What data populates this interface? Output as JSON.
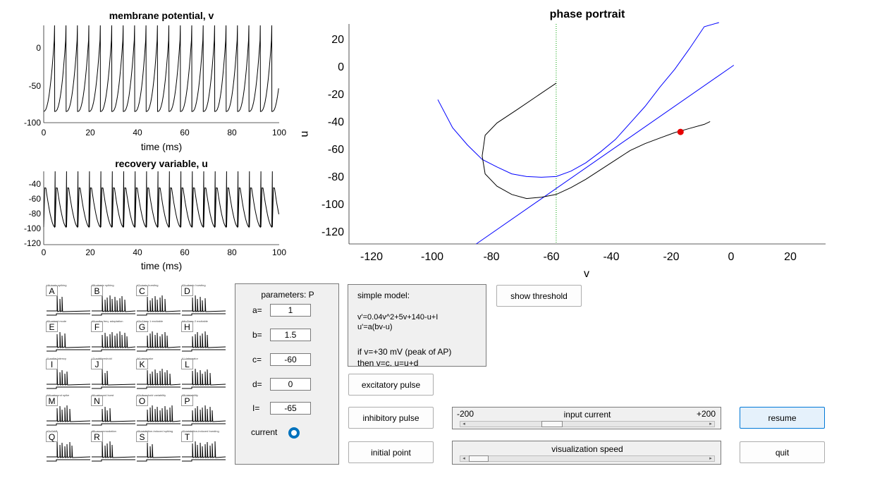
{
  "plots": {
    "membrane": {
      "title": "membrane potential, v",
      "xlabel": "time (ms)",
      "yticks": [
        "0",
        "-50",
        "-100"
      ],
      "xticks": [
        "0",
        "20",
        "40",
        "60",
        "80",
        "100"
      ]
    },
    "recovery": {
      "title": "recovery variable, u",
      "xlabel": "time (ms)",
      "yticks": [
        "-40",
        "-60",
        "-80",
        "-100",
        "-120"
      ],
      "xticks": [
        "0",
        "20",
        "40",
        "60",
        "80",
        "100"
      ]
    },
    "phase": {
      "title": "phase portrait",
      "xlabel": "v",
      "ylabel": "u",
      "yticks": [
        "20",
        "0",
        "-20",
        "-40",
        "-60",
        "-80",
        "-100",
        "-120"
      ],
      "xticks": [
        "-120",
        "-100",
        "-80",
        "-60",
        "-40",
        "-20",
        "0",
        "20"
      ]
    }
  },
  "chart_data": [
    {
      "type": "line",
      "title": "membrane potential, v",
      "xlabel": "time (ms)",
      "ylabel": "",
      "xlim": [
        0,
        100
      ],
      "ylim": [
        -100,
        30
      ],
      "spike_count": 21,
      "v_reset": -85,
      "v_peak": 30
    },
    {
      "type": "line",
      "title": "recovery variable, u",
      "xlabel": "time (ms)",
      "ylabel": "",
      "xlim": [
        0,
        100
      ],
      "ylim": [
        -122,
        -30
      ],
      "u_min": -100,
      "u_max": -30
    },
    {
      "type": "line",
      "title": "phase portrait",
      "xlabel": "v",
      "ylabel": "u",
      "xlim": [
        -130,
        31
      ],
      "ylim": [
        -130,
        30
      ],
      "series": [
        {
          "name": "",
          "color": "#0000ff",
          "x": [
            -100,
            -95,
            -90,
            -85,
            -80,
            -75,
            -70,
            -65,
            -60,
            -55,
            -50,
            -45,
            -40,
            -35,
            -30,
            -25,
            -20,
            -15,
            -10,
            -5
          ],
          "y": [
            -25,
            -45.5,
            -58,
            -68.5,
            -74,
            -79,
            -81,
            -81.5,
            -81,
            -77,
            -71,
            -63,
            -54,
            -42,
            -30,
            -16,
            -3,
            12,
            28,
            31
          ]
        },
        {
          "name": "",
          "color": "#0000ff",
          "x": [
            -87,
            0
          ],
          "y": [
            -130,
            0
          ]
        },
        {
          "name": "",
          "color": "#000000",
          "x": [
            -60,
            -73,
            -80,
            -84,
            -85,
            -84,
            -80,
            -75,
            -70,
            -65,
            -60,
            -55,
            -50,
            -45,
            -40,
            -35,
            -30,
            -25,
            -20,
            -15,
            -10,
            -8
          ],
          "y": [
            -13,
            -32,
            -42,
            -51,
            -66,
            -79,
            -88,
            -94,
            -97,
            -96,
            -94,
            -89,
            -83,
            -76,
            -69,
            -62,
            -57,
            -53,
            -49,
            -46,
            -43,
            -41
          ]
        }
      ],
      "threshold_line": {
        "x": -60,
        "color": "#00a000"
      },
      "current_point": {
        "x": -18,
        "y": -48.5,
        "color": "#e60000"
      }
    }
  ],
  "thumbnails": [
    {
      "letter": "A",
      "caption": "(A) tonic spiking"
    },
    {
      "letter": "B",
      "caption": "(B) phasic spiking"
    },
    {
      "letter": "C",
      "caption": "(C) tonic bursting"
    },
    {
      "letter": "D",
      "caption": "(D) phasic bursting"
    },
    {
      "letter": "E",
      "caption": "(E) mixed mode"
    },
    {
      "letter": "F",
      "caption": "(F) spike freq. adaptation"
    },
    {
      "letter": "G",
      "caption": "(G) Class 1 excitable"
    },
    {
      "letter": "H",
      "caption": "(H) Class 2 excitable"
    },
    {
      "letter": "I",
      "caption": "(I) spike latency"
    },
    {
      "letter": "J",
      "caption": "(J) subthreshold"
    },
    {
      "letter": "K",
      "caption": "(K) resonator"
    },
    {
      "letter": "L",
      "caption": "(L) integrator"
    },
    {
      "letter": "M",
      "caption": "(M) rebound spike"
    },
    {
      "letter": "N",
      "caption": "(N) rebound burst"
    },
    {
      "letter": "O",
      "caption": "(O) threshold variability"
    },
    {
      "letter": "P",
      "caption": "(P) bistability"
    },
    {
      "letter": "Q",
      "caption": "(Q) DAP"
    },
    {
      "letter": "R",
      "caption": "(R) accommodation"
    },
    {
      "letter": "S",
      "caption": "(S) inhibition-induced spiking"
    },
    {
      "letter": "T",
      "caption": "(T) inhibition-induced bursting"
    }
  ],
  "params": {
    "title": "parameters: P",
    "a_label": "a=",
    "a_value": "1",
    "b_label": "b=",
    "b_value": "1.5",
    "c_label": "c=",
    "c_value": "-60",
    "d_label": "d=",
    "d_value": "0",
    "I_label": "I=",
    "I_value": "-65",
    "current_label": "current"
  },
  "model": {
    "title": "simple model:",
    "eq1": "v'=0.04v^2+5v+140-u+I",
    "eq2": "u'=a(bv-u)",
    "cond": "if v=+30 mV (peak of AP)",
    "reset": "then v=c, u=u+d"
  },
  "buttons": {
    "show_threshold": "show threshold",
    "excitatory": "excitatory pulse",
    "inhibitory": "inhibitory pulse",
    "initial_point": "initial point",
    "resume": "resume",
    "quit": "quit"
  },
  "sliders": {
    "input_current": {
      "label": "input current",
      "min_label": "-200",
      "max_label": "+200",
      "value": -65
    },
    "visualization_speed": {
      "label": "visualization speed"
    }
  },
  "colors": {
    "accent": "#0072bd",
    "button_active_bg": "#e5f1fb",
    "button_active_border": "#0078d7"
  }
}
